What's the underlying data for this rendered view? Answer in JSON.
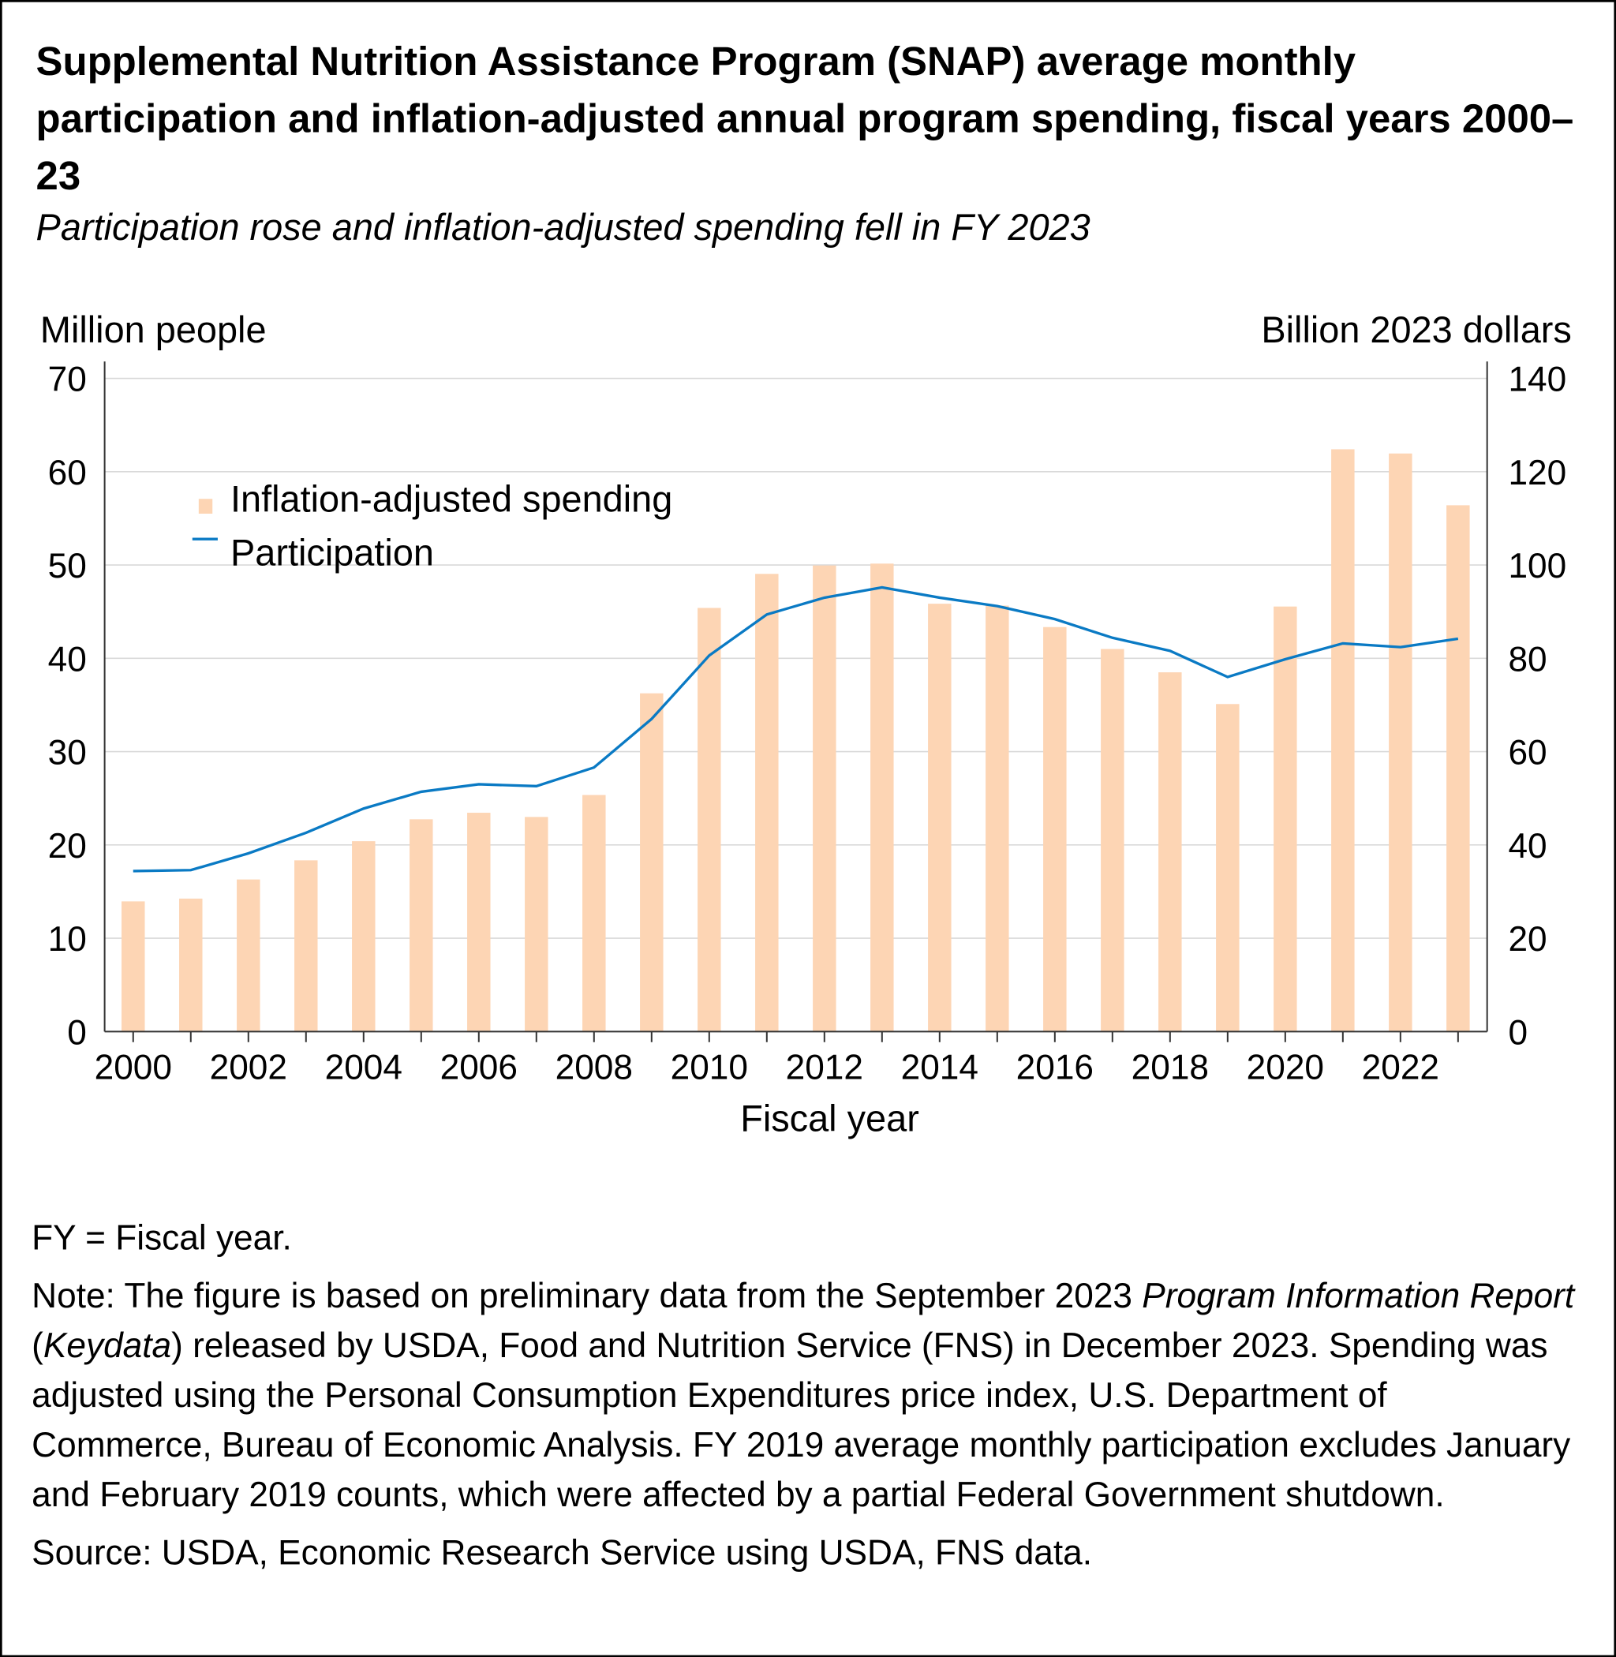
{
  "title": "Supplemental Nutrition Assistance Program (SNAP) average monthly participation and inflation-adjusted annual program spending, fiscal years 2000–23",
  "subtitle": "Participation rose and inflation-adjusted spending fell in FY 2023",
  "notes": {
    "fy": "FY = Fiscal year.",
    "note_a": "Note: The figure is based on preliminary data from the September 2023 ",
    "note_b": "Program Information Report",
    "note_c": " (",
    "note_d": "Keydata",
    "note_e": ") released by USDA, Food and Nutrition Service (FNS) in December 2023. Spending was adjusted using the Personal Consumption Expenditures price index, U.S. Department of Commerce, Bureau of Economic Analysis. FY 2019 average monthly participation excludes January and February 2019 counts, which were affected by a partial Federal Government shutdown.",
    "source": "Source: USDA, Economic Research Service using USDA, FNS data."
  },
  "chart_data": {
    "type": "bar+line",
    "xlabel": "Fiscal year",
    "ylabel_left": "Million people",
    "ylabel_right": "Billion 2023 dollars",
    "ylim_left": [
      0,
      70
    ],
    "ylim_right": [
      0,
      140
    ],
    "yticks_left": [
      "0",
      "10",
      "20",
      "30",
      "40",
      "50",
      "60",
      "70"
    ],
    "yticks_right": [
      "0",
      "20",
      "40",
      "60",
      "80",
      "100",
      "120",
      "140"
    ],
    "xtick_labels": [
      "2000",
      "2002",
      "2004",
      "2006",
      "2008",
      "2010",
      "2012",
      "2014",
      "2016",
      "2018",
      "2020",
      "2022"
    ],
    "grid": true,
    "legend_placement": "top-left",
    "categories": [
      2000,
      2001,
      2002,
      2003,
      2004,
      2005,
      2006,
      2007,
      2008,
      2009,
      2010,
      2011,
      2012,
      2013,
      2014,
      2015,
      2016,
      2017,
      2018,
      2019,
      2020,
      2021,
      2022,
      2023
    ],
    "series": [
      {
        "name": "Inflation-adjusted spending",
        "type": "bar",
        "axis": "right",
        "color": "#fdd5b4",
        "values": [
          27.9,
          28.5,
          32.6,
          36.7,
          40.8,
          45.5,
          46.9,
          46.0,
          50.7,
          72.5,
          90.8,
          98.1,
          99.9,
          100.3,
          91.7,
          91.3,
          86.7,
          82.0,
          77.0,
          70.2,
          91.1,
          124.8,
          123.9,
          112.8
        ]
      },
      {
        "name": "Participation",
        "type": "line",
        "axis": "left",
        "color": "#0a7ac4",
        "values": [
          17.2,
          17.3,
          19.1,
          21.3,
          23.9,
          25.7,
          26.5,
          26.3,
          28.3,
          33.5,
          40.3,
          44.7,
          46.5,
          47.6,
          46.5,
          45.6,
          44.2,
          42.2,
          40.8,
          38.0,
          39.9,
          41.6,
          41.2,
          42.1
        ]
      }
    ]
  }
}
